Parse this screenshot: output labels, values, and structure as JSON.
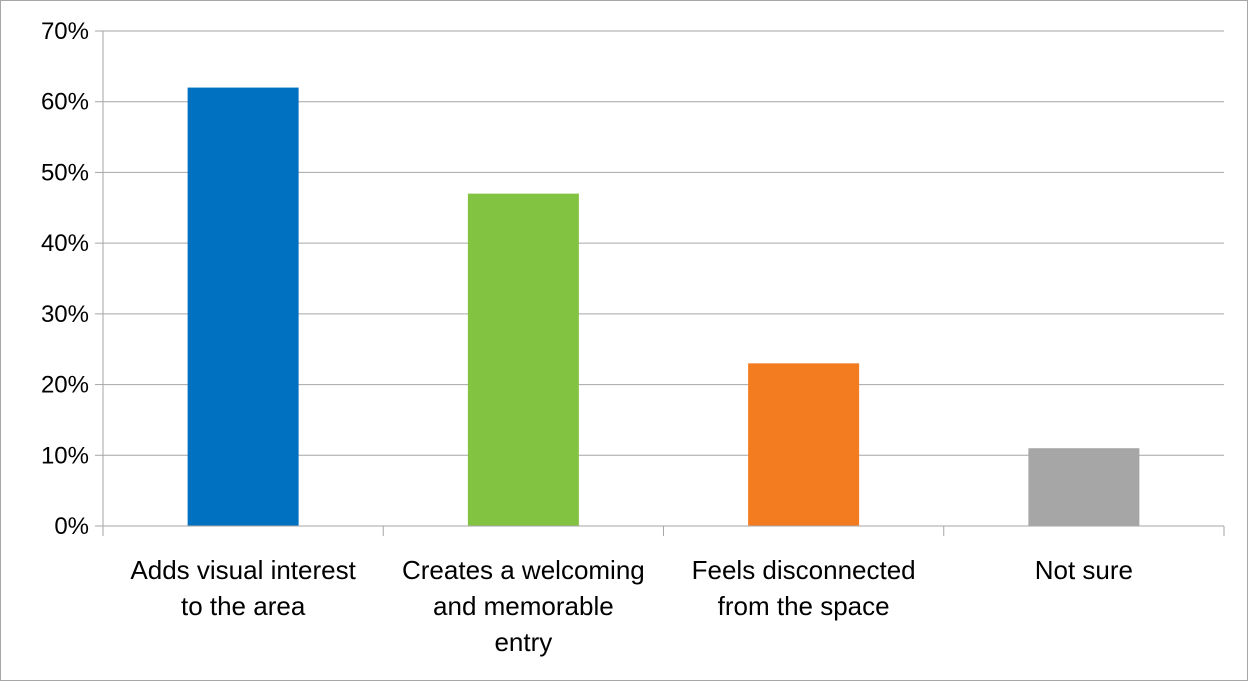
{
  "chart_data": {
    "type": "bar",
    "title": "",
    "xlabel": "",
    "ylabel": "",
    "categories": [
      [
        "Adds visual interest",
        "to the area"
      ],
      [
        "Creates a welcoming",
        "and memorable",
        "entry"
      ],
      [
        "Feels disconnected",
        "from the space"
      ],
      [
        "Not sure"
      ]
    ],
    "values": [
      62,
      47,
      23,
      11
    ],
    "colors": [
      "#0070c0",
      "#82c341",
      "#f47c20",
      "#a6a6a6"
    ],
    "ylim": [
      0,
      70
    ],
    "yticks": [
      0,
      10,
      20,
      30,
      40,
      50,
      60,
      70
    ],
    "ytick_labels": [
      "0%",
      "10%",
      "20%",
      "30%",
      "40%",
      "50%",
      "60%",
      "70%"
    ],
    "grid": true,
    "legend": "none"
  }
}
